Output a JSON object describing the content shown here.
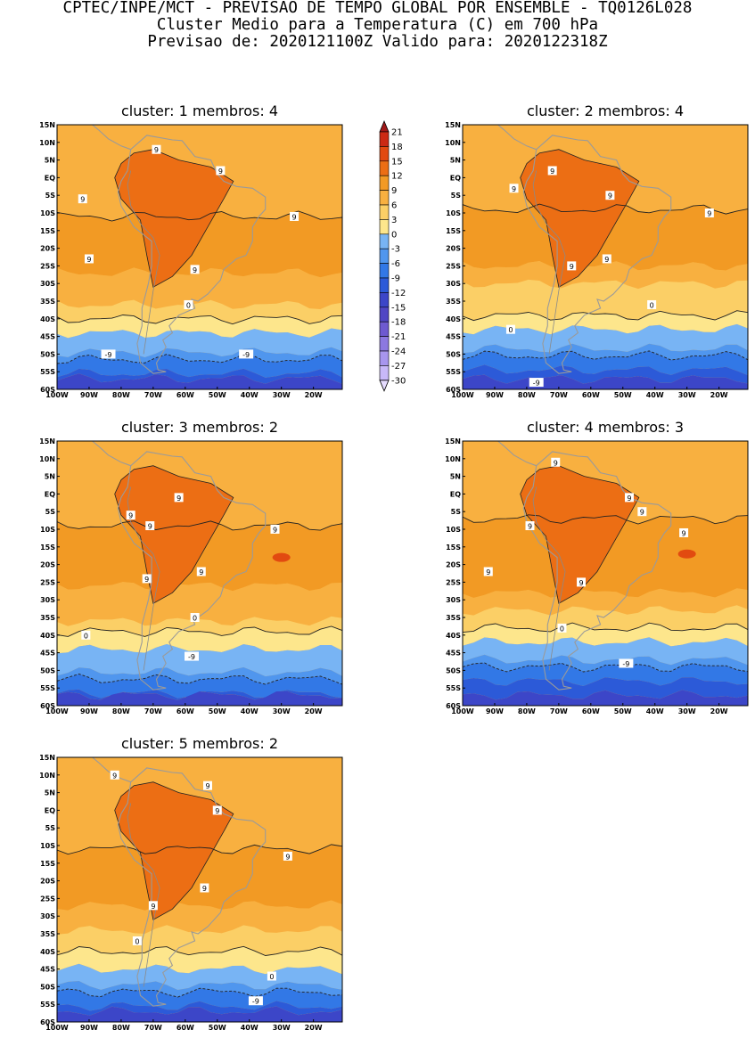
{
  "header": {
    "line1": "CPTEC/INPE/MCT - PREVISAO DE TEMPO GLOBAL POR ENSEMBLE - TQ0126L028",
    "line2": "Cluster Medio para a Temperatura (C) em 700 hPa",
    "line3": "Previsao de: 2020121100Z   Valido para: 2020122318Z"
  },
  "colors": {
    "levels": [
      -30,
      -27,
      -24,
      -21,
      -18,
      -15,
      -12,
      -9,
      -6,
      -3,
      0,
      3,
      6,
      9,
      12,
      15,
      18,
      21
    ],
    "fills": [
      "#e6dcff",
      "#c8b8f8",
      "#a896ee",
      "#8c78e0",
      "#6e5ad0",
      "#5046c4",
      "#3c46c8",
      "#2c5ad8",
      "#3278e6",
      "#5096ee",
      "#78b4f4",
      "#fde68c",
      "#fbcf66",
      "#f8b040",
      "#f29a24",
      "#ec6e14",
      "#e24a10",
      "#cc2a14",
      "#a01818"
    ]
  },
  "colorbar": {
    "labels": [
      "21",
      "18",
      "15",
      "12",
      "9",
      "6",
      "3",
      "0",
      "-3",
      "-6",
      "-9",
      "-12",
      "-15",
      "-18",
      "-21",
      "-24",
      "-27",
      "-30"
    ]
  },
  "axes": {
    "y_labels": [
      "15N",
      "10N",
      "5N",
      "EQ",
      "5S",
      "10S",
      "15S",
      "20S",
      "25S",
      "30S",
      "35S",
      "40S",
      "45S",
      "50S",
      "55S",
      "60S"
    ],
    "x_labels": [
      "100W",
      "90W",
      "80W",
      "70W",
      "60W",
      "50W",
      "40W",
      "30W",
      "20W"
    ]
  },
  "panels": [
    {
      "title": "cluster:  1   membros:  4",
      "bands": {
        "t9": -11,
        "t12": 10,
        "t6": -27,
        "t3": -36,
        "t0": -40,
        "tm3": -44,
        "tm9": -51.5
      },
      "hot_blobs": [],
      "labels": [
        {
          "lon": -69,
          "lat": 8,
          "text": "9"
        },
        {
          "lon": -92,
          "lat": -6,
          "text": "9"
        },
        {
          "lon": -49,
          "lat": 2,
          "text": "9"
        },
        {
          "lon": -26,
          "lat": -11,
          "text": "9"
        },
        {
          "lon": -90,
          "lat": -23,
          "text": "9"
        },
        {
          "lon": -57,
          "lat": -26,
          "text": "9"
        },
        {
          "lon": -59,
          "lat": -36,
          "text": "0"
        },
        {
          "lon": -84,
          "lat": -50,
          "text": "-9"
        },
        {
          "lon": -41,
          "lat": -50,
          "text": "-9"
        }
      ]
    },
    {
      "title": "cluster:  2   membros:  4",
      "bands": {
        "t9": -9,
        "t12": 12,
        "t6": -25,
        "t3": -30,
        "t0": -39,
        "tm3": -43,
        "tm9": -50.5
      },
      "hot_blobs": [],
      "labels": [
        {
          "lon": -72,
          "lat": 2,
          "text": "9"
        },
        {
          "lon": -84,
          "lat": -3,
          "text": "9"
        },
        {
          "lon": -54,
          "lat": -5,
          "text": "9"
        },
        {
          "lon": -23,
          "lat": -10,
          "text": "9"
        },
        {
          "lon": -66,
          "lat": -25,
          "text": "9"
        },
        {
          "lon": -55,
          "lat": -23,
          "text": "9"
        },
        {
          "lon": -41,
          "lat": -36,
          "text": "0"
        },
        {
          "lon": -85,
          "lat": -43,
          "text": "0"
        },
        {
          "lon": -77,
          "lat": -58,
          "text": "-9"
        }
      ]
    },
    {
      "title": "cluster:  3   membros:  2",
      "bands": {
        "t9": -9,
        "t12": 11,
        "t6": -26,
        "t3": -36,
        "t0": -39,
        "tm3": -44,
        "tm9": -52.5
      },
      "hot_blobs": [
        {
          "lon": -30,
          "lat": -18
        }
      ],
      "labels": [
        {
          "lon": -62,
          "lat": -1,
          "text": "9"
        },
        {
          "lon": -71,
          "lat": -9,
          "text": "9"
        },
        {
          "lon": -77,
          "lat": -6,
          "text": "9"
        },
        {
          "lon": -32,
          "lat": -10,
          "text": "9"
        },
        {
          "lon": -55,
          "lat": -22,
          "text": "9"
        },
        {
          "lon": -72,
          "lat": -24,
          "text": "9"
        },
        {
          "lon": -91,
          "lat": -40,
          "text": "0"
        },
        {
          "lon": -57,
          "lat": -35,
          "text": "0"
        },
        {
          "lon": -58,
          "lat": -46,
          "text": "-9"
        }
      ]
    },
    {
      "title": "cluster:  4   membros:  3",
      "bands": {
        "t9": -7,
        "t12": 9,
        "t6": -28,
        "t3": -33,
        "t0": -38,
        "tm3": -42,
        "tm9": -49
      },
      "hot_blobs": [
        {
          "lon": -30,
          "lat": -17
        }
      ],
      "labels": [
        {
          "lon": -71,
          "lat": 9,
          "text": "9"
        },
        {
          "lon": -48,
          "lat": -1,
          "text": "9"
        },
        {
          "lon": -44,
          "lat": -5,
          "text": "9"
        },
        {
          "lon": -31,
          "lat": -11,
          "text": "9"
        },
        {
          "lon": -92,
          "lat": -22,
          "text": "9"
        },
        {
          "lon": -79,
          "lat": -9,
          "text": "9"
        },
        {
          "lon": -63,
          "lat": -25,
          "text": "9"
        },
        {
          "lon": -69,
          "lat": -38,
          "text": "0"
        },
        {
          "lon": -49,
          "lat": -48,
          "text": "-9"
        }
      ]
    },
    {
      "title": "cluster:  5   membros:  2",
      "bands": {
        "t9": -11,
        "t12": 6,
        "t6": -27,
        "t3": -34,
        "t0": -40,
        "tm3": -45,
        "tm9": -51.5
      },
      "hot_blobs": [],
      "labels": [
        {
          "lon": -82,
          "lat": 10,
          "text": "9"
        },
        {
          "lon": -53,
          "lat": 7,
          "text": "9"
        },
        {
          "lon": -50,
          "lat": 0,
          "text": "9"
        },
        {
          "lon": -28,
          "lat": -13,
          "text": "9"
        },
        {
          "lon": -54,
          "lat": -22,
          "text": "9"
        },
        {
          "lon": -70,
          "lat": -27,
          "text": "9"
        },
        {
          "lon": -75,
          "lat": -37,
          "text": "0"
        },
        {
          "lon": -33,
          "lat": -47,
          "text": "0"
        },
        {
          "lon": -38,
          "lat": -54,
          "text": "-9"
        }
      ]
    }
  ]
}
